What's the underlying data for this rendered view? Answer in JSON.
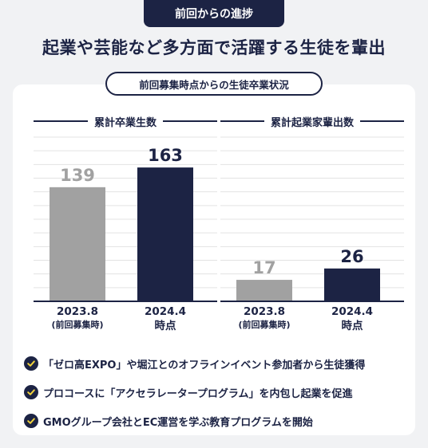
{
  "tag": "前回からの進捗",
  "headline": "起業や芸能など多方面で活躍する生徒を輩出",
  "subtitle": "前回募集時点からの生徒卒業状況",
  "colors": {
    "navy": "#1c2344",
    "gray": "#a1a1a1",
    "grid": "#e3e3e3"
  },
  "chart_data": [
    {
      "type": "bar",
      "title": "累計卒業生数",
      "categories": [
        "2023.8\n(前回募集時)",
        "2024.4\n時点"
      ],
      "x_main": [
        "2023.8",
        "2024.4"
      ],
      "x_sub": [
        "(前回募集時)",
        "時点"
      ],
      "values": [
        139,
        163
      ],
      "data_labels": [
        "139",
        "163"
      ],
      "bar_colors": [
        "#a1a1a1",
        "#1c2344"
      ],
      "ylim": [
        0,
        200
      ],
      "grid": true
    },
    {
      "type": "bar",
      "title": "累計起業家輩出数",
      "categories": [
        "2023.8\n(前回募集時)",
        "2024.4\n時点"
      ],
      "x_main": [
        "2023.8",
        "2024.4"
      ],
      "x_sub": [
        "(前回募集時)",
        "時点"
      ],
      "values": [
        17,
        26
      ],
      "data_labels": [
        "17",
        "26"
      ],
      "bar_colors": [
        "#a1a1a1",
        "#1c2344"
      ],
      "ylim": [
        0,
        130
      ],
      "grid": true
    }
  ],
  "bullets": [
    "「ゼロ高EXPO」や堀江とのオフラインイベント参加者から生徒獲得",
    "プロコースに「アクセラレータープログラム」を内包し起業を促進",
    "GMOグループ会社とEC運営を学ぶ教育プログラムを開始"
  ],
  "icons": {
    "bullet": "check-circle-icon"
  }
}
